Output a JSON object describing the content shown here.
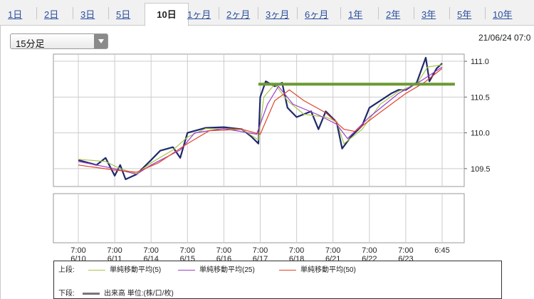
{
  "tabs": [
    {
      "label": "1日",
      "active": false
    },
    {
      "label": "2日",
      "active": false
    },
    {
      "label": "3日",
      "active": false
    },
    {
      "label": "5日",
      "active": false
    },
    {
      "label": "10日",
      "active": true
    },
    {
      "label": "1ヶ月",
      "active": false
    },
    {
      "label": "2ヶ月",
      "active": false
    },
    {
      "label": "3ヶ月",
      "active": false
    },
    {
      "label": "6ヶ月",
      "active": false
    },
    {
      "label": "1年",
      "active": false
    },
    {
      "label": "2年",
      "active": false
    },
    {
      "label": "3年",
      "active": false
    },
    {
      "label": "5年",
      "active": false
    },
    {
      "label": "10年",
      "active": false
    }
  ],
  "interval_select": {
    "value": "15分足"
  },
  "datetime": "21/06/24 07:0",
  "chart_data": {
    "type": "line",
    "x_tick_times": [
      "7:00",
      "7:00",
      "7:00",
      "7:00",
      "7:00",
      "7:00",
      "7:00",
      "7:00",
      "7:00",
      "7:00",
      "6:45"
    ],
    "x_tick_dates": [
      "6/10",
      "6/11",
      "6/14",
      "6/15",
      "6/16",
      "6/17",
      "6/18",
      "6/21",
      "6/22",
      "6/23",
      ""
    ],
    "y_tick_labels": [
      "111.0",
      "110.5",
      "110.0",
      "109.5"
    ],
    "ylim": [
      109.25,
      111.1
    ],
    "y_ticks": [
      111.0,
      110.5,
      110.0,
      109.5
    ],
    "price": [
      [
        0.0,
        109.62
      ],
      [
        0.5,
        109.55
      ],
      [
        0.75,
        109.65
      ],
      [
        1.0,
        109.4
      ],
      [
        1.15,
        109.55
      ],
      [
        1.3,
        109.35
      ],
      [
        1.6,
        109.42
      ],
      [
        2.0,
        109.62
      ],
      [
        2.25,
        109.75
      ],
      [
        2.6,
        109.8
      ],
      [
        2.8,
        109.65
      ],
      [
        3.0,
        110.0
      ],
      [
        3.5,
        110.07
      ],
      [
        4.0,
        110.08
      ],
      [
        4.5,
        110.05
      ],
      [
        4.75,
        109.95
      ],
      [
        4.95,
        109.85
      ],
      [
        5.0,
        110.5
      ],
      [
        5.15,
        110.72
      ],
      [
        5.4,
        110.65
      ],
      [
        5.6,
        110.7
      ],
      [
        5.75,
        110.35
      ],
      [
        6.0,
        110.22
      ],
      [
        6.4,
        110.3
      ],
      [
        6.6,
        110.05
      ],
      [
        6.8,
        110.3
      ],
      [
        7.0,
        110.2
      ],
      [
        7.1,
        110.15
      ],
      [
        7.25,
        109.78
      ],
      [
        7.5,
        109.95
      ],
      [
        7.8,
        110.1
      ],
      [
        8.0,
        110.35
      ],
      [
        8.3,
        110.45
      ],
      [
        8.6,
        110.55
      ],
      [
        8.8,
        110.6
      ],
      [
        9.0,
        110.6
      ],
      [
        9.3,
        110.7
      ],
      [
        9.55,
        111.05
      ],
      [
        9.65,
        110.72
      ],
      [
        9.85,
        110.9
      ],
      [
        10.0,
        110.97
      ]
    ],
    "series": [
      {
        "name": "単純移動平均(5)",
        "color": "#a6c84a",
        "values": [
          [
            0.0,
            109.63
          ],
          [
            0.75,
            109.6
          ],
          [
            1.15,
            109.5
          ],
          [
            1.6,
            109.43
          ],
          [
            2.0,
            109.58
          ],
          [
            2.6,
            109.76
          ],
          [
            3.0,
            109.94
          ],
          [
            3.5,
            110.06
          ],
          [
            4.5,
            110.05
          ],
          [
            4.95,
            109.9
          ],
          [
            5.1,
            110.5
          ],
          [
            5.4,
            110.68
          ],
          [
            5.75,
            110.45
          ],
          [
            6.2,
            110.26
          ],
          [
            6.8,
            110.22
          ],
          [
            7.1,
            110.16
          ],
          [
            7.3,
            109.85
          ],
          [
            7.8,
            110.05
          ],
          [
            8.3,
            110.4
          ],
          [
            8.8,
            110.58
          ],
          [
            9.3,
            110.68
          ],
          [
            9.6,
            110.92
          ],
          [
            10.0,
            110.95
          ]
        ]
      },
      {
        "name": "単純移動平均(25)",
        "color": "#9b3fcf",
        "values": [
          [
            0.0,
            109.6
          ],
          [
            1.0,
            109.5
          ],
          [
            1.6,
            109.42
          ],
          [
            2.0,
            109.55
          ],
          [
            2.8,
            109.76
          ],
          [
            3.2,
            110.0
          ],
          [
            4.0,
            110.06
          ],
          [
            4.9,
            109.98
          ],
          [
            5.2,
            110.4
          ],
          [
            5.5,
            110.65
          ],
          [
            5.9,
            110.4
          ],
          [
            6.6,
            110.25
          ],
          [
            7.1,
            110.12
          ],
          [
            7.4,
            109.92
          ],
          [
            8.0,
            110.22
          ],
          [
            8.8,
            110.55
          ],
          [
            9.4,
            110.72
          ],
          [
            10.0,
            110.92
          ]
        ]
      },
      {
        "name": "単純移動平均(50)",
        "color": "#e0442a",
        "values": [
          [
            0.0,
            109.55
          ],
          [
            1.0,
            109.48
          ],
          [
            1.6,
            109.45
          ],
          [
            2.2,
            109.58
          ],
          [
            3.0,
            109.85
          ],
          [
            3.6,
            110.03
          ],
          [
            4.5,
            110.05
          ],
          [
            5.0,
            109.98
          ],
          [
            5.4,
            110.45
          ],
          [
            5.8,
            110.6
          ],
          [
            6.2,
            110.45
          ],
          [
            6.8,
            110.28
          ],
          [
            7.3,
            110.05
          ],
          [
            7.6,
            110.02
          ],
          [
            8.2,
            110.25
          ],
          [
            9.0,
            110.55
          ],
          [
            9.5,
            110.7
          ],
          [
            10.0,
            110.9
          ]
        ]
      }
    ],
    "resistance_line": {
      "y": 110.68,
      "x_start": 4.95,
      "x_end": 10.35,
      "color": "#6a9a35"
    }
  },
  "legend": {
    "upper_label": "上段:",
    "lower_label": "下段:",
    "items": [
      {
        "label": "単純移動平均(5)",
        "color": "#a6c84a"
      },
      {
        "label": "単純移動平均(25)",
        "color": "#9b3fcf"
      },
      {
        "label": "単純移動平均(50)",
        "color": "#e0442a"
      }
    ],
    "volume": {
      "label": "出来高 単位:(株/口/枚)",
      "color": "#777777"
    }
  }
}
